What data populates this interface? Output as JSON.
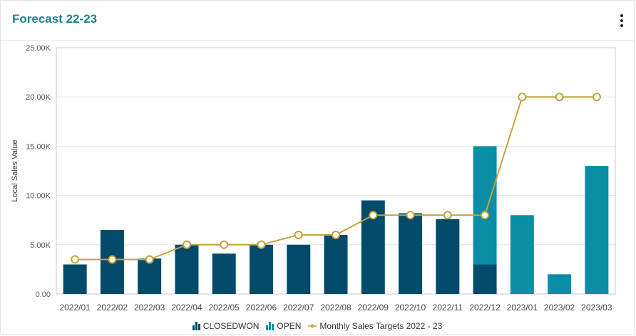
{
  "header": {
    "title": "Forecast 22-23",
    "menu_icon": "vertical-ellipsis-icon"
  },
  "colors": {
    "closedwon": "#024b6b",
    "open": "#0a8ea5",
    "target": "#c4a23e",
    "title": "#1f8196"
  },
  "chart_data": {
    "type": "bar",
    "stacked": true,
    "ylabel": "Local Sales Value",
    "xlabel": "",
    "ylim": [
      0,
      25000
    ],
    "yticks": [
      "0.00",
      "5.00K",
      "10.00K",
      "15.00K",
      "20.00K",
      "25.00K"
    ],
    "ytick_values": [
      0,
      5000,
      10000,
      15000,
      20000,
      25000
    ],
    "categories": [
      "2022/01",
      "2022/02",
      "2022/03",
      "2022/04",
      "2022/05",
      "2022/06",
      "2022/07",
      "2022/08",
      "2022/09",
      "2022/10",
      "2022/11",
      "2022/12",
      "2023/01",
      "2023/02",
      "2023/03"
    ],
    "series": [
      {
        "name": "CLOSEDWON",
        "type": "bar",
        "color": "#024b6b",
        "values": [
          3000,
          6500,
          3600,
          5000,
          4100,
          5000,
          5000,
          6000,
          9500,
          8200,
          7600,
          3000,
          0,
          0,
          0
        ]
      },
      {
        "name": "OPEN",
        "type": "bar",
        "color": "#0a8ea5",
        "values": [
          0,
          0,
          0,
          0,
          0,
          0,
          0,
          0,
          0,
          0,
          0,
          12000,
          8000,
          2000,
          13000
        ]
      },
      {
        "name": "Monthly Sales Targets 2022 - 23",
        "type": "line",
        "color": "#c4a23e",
        "values": [
          3500,
          3500,
          3500,
          5000,
          5000,
          5000,
          6000,
          6000,
          8000,
          8000,
          8000,
          8000,
          20000,
          20000,
          20000
        ]
      }
    ],
    "legend_position": "bottom-center",
    "grid": true
  }
}
